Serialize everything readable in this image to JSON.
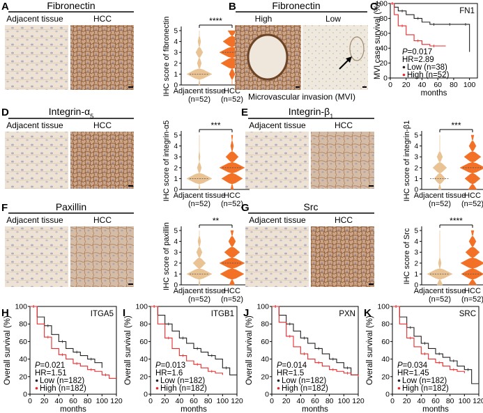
{
  "colors": {
    "hcc": "#F26A1B",
    "adjacent": "#E8C08E",
    "high_line": "#E8292B",
    "low_line": "#222222",
    "tissue_adjacent": "#E9DDD0",
    "tissue_hcc": "#C9A383",
    "tissue_dark": "#8B5A36"
  },
  "panels": {
    "A": {
      "letter": "A",
      "title": "Fibronectin",
      "left_label": "Adjacent tissue",
      "right_label": "HCC",
      "ylabel": "IHC score of fibronectin",
      "sig": "****",
      "x_labels": [
        "Adjacent tissue",
        "HCC"
      ],
      "n_labels": [
        "(n=52)",
        "(n=52)"
      ]
    },
    "B": {
      "letter": "B",
      "title": "Fibronectin",
      "left_label": "High",
      "right_label": "Low",
      "caption": "Microvascular invasion (MVI)"
    },
    "C": {
      "letter": "C",
      "label": "FN1",
      "ylabel": "MVI case survival (%)",
      "xlabel": "months",
      "p": "P=0.017",
      "hr": "HR=2.89",
      "low": "Low (n=38)",
      "high": "High (n=52)"
    },
    "D": {
      "letter": "D",
      "title": "Integrin-α",
      "title_sub": "5",
      "left_label": "Adjacent tissue",
      "right_label": "HCC",
      "ylabel": "IHC score of integrin-α5",
      "sig": "***",
      "x_labels": [
        "Adjacent tissue",
        "HCC"
      ],
      "n_labels": [
        "(n=52)",
        "(n=52)"
      ]
    },
    "E": {
      "letter": "E",
      "title": "Integrin-β",
      "title_sub": "1",
      "left_label": "Adjacent tissue",
      "right_label": "HCC",
      "ylabel": "IHC score of integrin-β1",
      "sig": "***",
      "x_labels": [
        "Adjacent tissue",
        "HCC"
      ],
      "n_labels": [
        "(n=52)",
        "(n=52)"
      ]
    },
    "F": {
      "letter": "F",
      "title": "Paxillin",
      "left_label": "Adjacent tissue",
      "right_label": "HCC",
      "ylabel": "IHC score of paxillin",
      "sig": "**",
      "x_labels": [
        "Adjacent tissue",
        "HCC"
      ],
      "n_labels": [
        "(n=52)",
        "(n=52)"
      ]
    },
    "G": {
      "letter": "G",
      "title": "Src",
      "left_label": "Adjacent tissue",
      "right_label": "HCC",
      "ylabel": "IHC score of Src",
      "sig": "****",
      "x_labels": [
        "Adjacent tissue",
        "HCC"
      ],
      "n_labels": [
        "(n=52)",
        "(n=52)"
      ]
    },
    "H": {
      "letter": "H",
      "label": "ITGA5",
      "ylabel": "Overall survival (%)",
      "xlabel": "months",
      "p": "P=0.021",
      "hr": "HR=1.51",
      "low": "Low (n=182)",
      "high": "High (n=182)"
    },
    "I": {
      "letter": "I",
      "label": "ITGB1",
      "ylabel": "Overall survival (%)",
      "xlabel": "months",
      "p": "P=0.013",
      "hr": "HR=1.6",
      "low": "Low (n=182)",
      "high": "High (n=182)"
    },
    "J": {
      "letter": "J",
      "label": "PXN",
      "ylabel": "Overall survival (%)",
      "xlabel": "months",
      "p": "P=0.014",
      "hr": "HR=1.5",
      "low": "Low (n=182)",
      "high": "High (n=182)"
    },
    "K": {
      "letter": "K",
      "label": "SRC",
      "ylabel": "Overall survival (%)",
      "xlabel": "months",
      "p": "P=0.034",
      "hr": "HR=1.45",
      "low": "Low (n=182)",
      "high": "High (n=182)"
    }
  },
  "chart_data": [
    {
      "panel": "A",
      "type": "violin",
      "categories": [
        "Adjacent tissue",
        "HCC"
      ],
      "ylim": [
        0,
        5
      ],
      "yticks": [
        0,
        1,
        2,
        3,
        4,
        5
      ],
      "score_levels": [
        0,
        1,
        2,
        3,
        4,
        5
      ],
      "densities": [
        [
          0.05,
          0.9,
          0.15,
          0.25,
          0.1,
          0.0
        ],
        [
          0.0,
          0.2,
          0.8,
          0.9,
          0.65,
          0.3
        ]
      ],
      "medians": [
        1,
        3
      ],
      "significance": "****"
    },
    {
      "panel": "D",
      "type": "violin",
      "categories": [
        "Adjacent tissue",
        "HCC"
      ],
      "ylim": [
        0,
        5
      ],
      "yticks": [
        0,
        1,
        2,
        3,
        4,
        5
      ],
      "score_levels": [
        0,
        1,
        2,
        3,
        4,
        5
      ],
      "densities": [
        [
          0.05,
          0.9,
          0.15,
          0.05,
          0.0,
          0.0
        ],
        [
          0.1,
          0.75,
          0.9,
          0.45,
          0.1,
          0.05
        ]
      ],
      "medians": [
        1,
        2
      ],
      "significance": "***"
    },
    {
      "panel": "E",
      "type": "violin",
      "categories": [
        "Adjacent tissue",
        "HCC"
      ],
      "ylim": [
        0,
        5
      ],
      "yticks": [
        0,
        1,
        2,
        3,
        4,
        5
      ],
      "score_levels": [
        0,
        1,
        2,
        3,
        4,
        5
      ],
      "densities": [
        [
          0.1,
          0.4,
          0.5,
          0.2,
          0.0,
          0.0
        ],
        [
          0.3,
          0.55,
          0.9,
          0.6,
          0.25,
          0.1
        ]
      ],
      "medians": [
        1,
        2
      ],
      "significance": "***"
    },
    {
      "panel": "F",
      "type": "violin",
      "categories": [
        "Adjacent tissue",
        "HCC"
      ],
      "ylim": [
        0,
        5
      ],
      "yticks": [
        0,
        1,
        2,
        3,
        4,
        5
      ],
      "score_levels": [
        0,
        1,
        2,
        3,
        4,
        5
      ],
      "densities": [
        [
          0.05,
          0.9,
          0.45,
          0.2,
          0.1,
          0.0
        ],
        [
          0.2,
          0.85,
          0.9,
          0.55,
          0.25,
          0.1
        ]
      ],
      "medians": [
        1,
        2
      ],
      "significance": "**"
    },
    {
      "panel": "G",
      "type": "violin",
      "categories": [
        "Adjacent tissue",
        "HCC"
      ],
      "ylim": [
        0,
        5
      ],
      "yticks": [
        0,
        1,
        2,
        3,
        4,
        5
      ],
      "score_levels": [
        0,
        1,
        2,
        3,
        4,
        5
      ],
      "densities": [
        [
          0.2,
          0.9,
          0.1,
          0.0,
          0.0,
          0.0
        ],
        [
          0.3,
          0.8,
          0.85,
          0.5,
          0.25,
          0.1
        ]
      ],
      "medians": [
        1,
        1
      ],
      "significance": "****"
    },
    {
      "panel": "C",
      "type": "line",
      "title": "FN1",
      "xlabel": "months",
      "ylabel": "MVI case survival (%)",
      "xlim": [
        0,
        110
      ],
      "ylim": [
        0,
        100
      ],
      "xticks": [
        0,
        20,
        40,
        60,
        80,
        100
      ],
      "yticks": [
        0,
        20,
        40,
        60,
        80,
        100
      ],
      "series": [
        {
          "name": "Low (n=38)",
          "x": [
            0,
            5,
            10,
            20,
            30,
            40,
            50,
            60,
            70,
            80,
            90,
            100
          ],
          "y": [
            100,
            95,
            90,
            85,
            80,
            75,
            72,
            72,
            72,
            72,
            72,
            35
          ]
        },
        {
          "name": "High (n=52)",
          "x": [
            0,
            5,
            10,
            20,
            30,
            40,
            50,
            60,
            70
          ],
          "y": [
            100,
            85,
            70,
            58,
            50,
            45,
            43,
            43,
            43
          ]
        }
      ]
    },
    {
      "panel": "H",
      "type": "line",
      "title": "ITGA5",
      "xlabel": "months",
      "ylabel": "Overall survival (%)",
      "xlim": [
        0,
        120
      ],
      "ylim": [
        0,
        100
      ],
      "xticks": [
        0,
        20,
        40,
        60,
        80,
        100,
        120
      ],
      "yticks": [
        0,
        20,
        40,
        60,
        80,
        100
      ],
      "series": [
        {
          "name": "Low (n=182)",
          "x": [
            0,
            10,
            20,
            30,
            40,
            50,
            60,
            70,
            80,
            90,
            100
          ],
          "y": [
            100,
            88,
            78,
            68,
            60,
            52,
            48,
            44,
            40,
            36,
            30
          ]
        },
        {
          "name": "High (n=182)",
          "x": [
            0,
            10,
            20,
            30,
            40,
            50,
            60,
            70,
            80,
            90,
            100,
            110,
            120
          ],
          "y": [
            100,
            80,
            65,
            52,
            45,
            40,
            35,
            32,
            28,
            26,
            22,
            18,
            18
          ]
        }
      ]
    },
    {
      "panel": "I",
      "type": "line",
      "title": "ITGB1",
      "xlabel": "months",
      "ylabel": "Overall survival (%)",
      "xlim": [
        0,
        120
      ],
      "ylim": [
        0,
        100
      ],
      "xticks": [
        0,
        20,
        40,
        60,
        80,
        100,
        120
      ],
      "yticks": [
        0,
        20,
        40,
        60,
        80,
        100
      ],
      "series": [
        {
          "name": "Low (n=182)",
          "x": [
            0,
            10,
            20,
            30,
            40,
            50,
            60,
            70,
            80,
            90,
            100,
            110,
            120
          ],
          "y": [
            100,
            90,
            80,
            72,
            64,
            58,
            52,
            48,
            44,
            40,
            30,
            22,
            22
          ]
        },
        {
          "name": "High (n=182)",
          "x": [
            0,
            10,
            20,
            30,
            40,
            50,
            60,
            70,
            80,
            90,
            100
          ],
          "y": [
            100,
            80,
            64,
            52,
            44,
            38,
            34,
            30,
            26,
            24,
            22
          ]
        }
      ]
    },
    {
      "panel": "J",
      "type": "line",
      "title": "PXN",
      "xlabel": "months",
      "ylabel": "Overall survival (%)",
      "xlim": [
        0,
        120
      ],
      "ylim": [
        0,
        100
      ],
      "xticks": [
        0,
        20,
        40,
        60,
        80,
        100,
        120
      ],
      "yticks": [
        0,
        20,
        40,
        60,
        80,
        100
      ],
      "series": [
        {
          "name": "Low (n=182)",
          "x": [
            0,
            10,
            20,
            30,
            40,
            50,
            60,
            70,
            80,
            90,
            100,
            110,
            120
          ],
          "y": [
            100,
            90,
            80,
            72,
            64,
            58,
            52,
            46,
            40,
            36,
            30,
            22,
            20
          ]
        },
        {
          "name": "High (n=182)",
          "x": [
            0,
            10,
            20,
            30,
            40,
            50,
            60,
            70,
            80,
            90,
            100,
            110,
            120
          ],
          "y": [
            100,
            82,
            66,
            54,
            46,
            40,
            36,
            32,
            28,
            26,
            24,
            22,
            20
          ]
        }
      ]
    },
    {
      "panel": "K",
      "type": "line",
      "title": "SRC",
      "xlabel": "months",
      "ylabel": "Overall survival (%)",
      "xlim": [
        0,
        120
      ],
      "ylim": [
        0,
        100
      ],
      "xticks": [
        0,
        20,
        40,
        60,
        80,
        100,
        120
      ],
      "yticks": [
        0,
        20,
        40,
        60,
        80,
        100
      ],
      "series": [
        {
          "name": "Low (n=182)",
          "x": [
            0,
            10,
            20,
            30,
            40,
            50,
            60,
            70,
            80,
            90,
            100,
            110,
            120
          ],
          "y": [
            100,
            88,
            76,
            66,
            58,
            52,
            46,
            42,
            38,
            32,
            28,
            12,
            5
          ]
        },
        {
          "name": "High (n=182)",
          "x": [
            0,
            10,
            20,
            30,
            40,
            50,
            60,
            70,
            80,
            90,
            100
          ],
          "y": [
            100,
            80,
            64,
            54,
            46,
            40,
            36,
            32,
            28,
            26,
            24
          ]
        }
      ]
    }
  ]
}
